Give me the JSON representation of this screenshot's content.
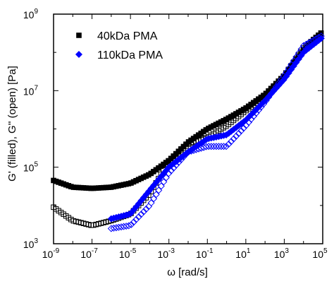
{
  "chart_data": {
    "type": "scatter",
    "title": "",
    "xlabel": "ω [rad/s]",
    "ylabel": "G' (filled), G'' (open) [Pa]",
    "x_scale": "log",
    "y_scale": "log",
    "xlim": [
      1e-09,
      100000.0
    ],
    "ylim": [
      1000.0,
      1000000000.0
    ],
    "x_ticks": [
      {
        "value": 1e-09,
        "base": "10",
        "exp": "-9"
      },
      {
        "value": 1e-07,
        "base": "10",
        "exp": "-7"
      },
      {
        "value": 1e-05,
        "base": "10",
        "exp": "-5"
      },
      {
        "value": 0.001,
        "base": "10",
        "exp": "-3"
      },
      {
        "value": 0.1,
        "base": "10",
        "exp": "-1"
      },
      {
        "value": 10.0,
        "base": "10",
        "exp": "1"
      },
      {
        "value": 1000.0,
        "base": "10",
        "exp": "3"
      },
      {
        "value": 100000.0,
        "base": "10",
        "exp": "5"
      }
    ],
    "y_ticks": [
      {
        "value": 1000.0,
        "base": "10",
        "exp": "3"
      },
      {
        "value": 100000.0,
        "base": "10",
        "exp": "5"
      },
      {
        "value": 10000000.0,
        "base": "10",
        "exp": "7"
      },
      {
        "value": 1000000000.0,
        "base": "10",
        "exp": "9"
      }
    ],
    "grid": false,
    "legend_position": "top-left",
    "series": [
      {
        "name": "40kDa PMA",
        "color": "#000000",
        "marker": "square",
        "x": [
          1e-09,
          1e-08,
          1e-07,
          1e-06,
          1e-05,
          0.0001,
          0.001,
          0.01,
          0.1,
          1,
          10,
          100,
          1000.0,
          10000.0,
          100000.0
        ],
        "storage_modulus_G1": [
          45000,
          30000,
          28000,
          30000,
          38000,
          65000,
          150000,
          450000,
          1000000,
          1800000,
          3500000,
          8000000,
          25000000,
          120000000,
          350000000
        ],
        "loss_modulus_G2": [
          9000,
          4000,
          3000,
          4000,
          6000,
          20000,
          150000,
          400000,
          600000,
          1200000,
          3000000,
          7000000,
          25000000,
          130000000,
          350000000
        ]
      },
      {
        "name": "110kDa PMA",
        "color": "#0000ff",
        "marker": "diamond",
        "x": [
          1e-06,
          1e-05,
          0.0001,
          0.001,
          0.01,
          0.1,
          1,
          10,
          100,
          1000.0,
          10000.0,
          100000.0
        ],
        "storage_modulus_G1": [
          4500,
          6000,
          25000,
          100000,
          250000,
          550000,
          700000,
          1700000,
          5500000,
          20000000,
          100000000,
          250000000
        ],
        "loss_modulus_G2": [
          2500,
          3000,
          10000,
          70000,
          250000,
          350000,
          350000,
          1200000,
          5000000,
          25000000,
          150000000,
          280000000
        ]
      }
    ]
  }
}
